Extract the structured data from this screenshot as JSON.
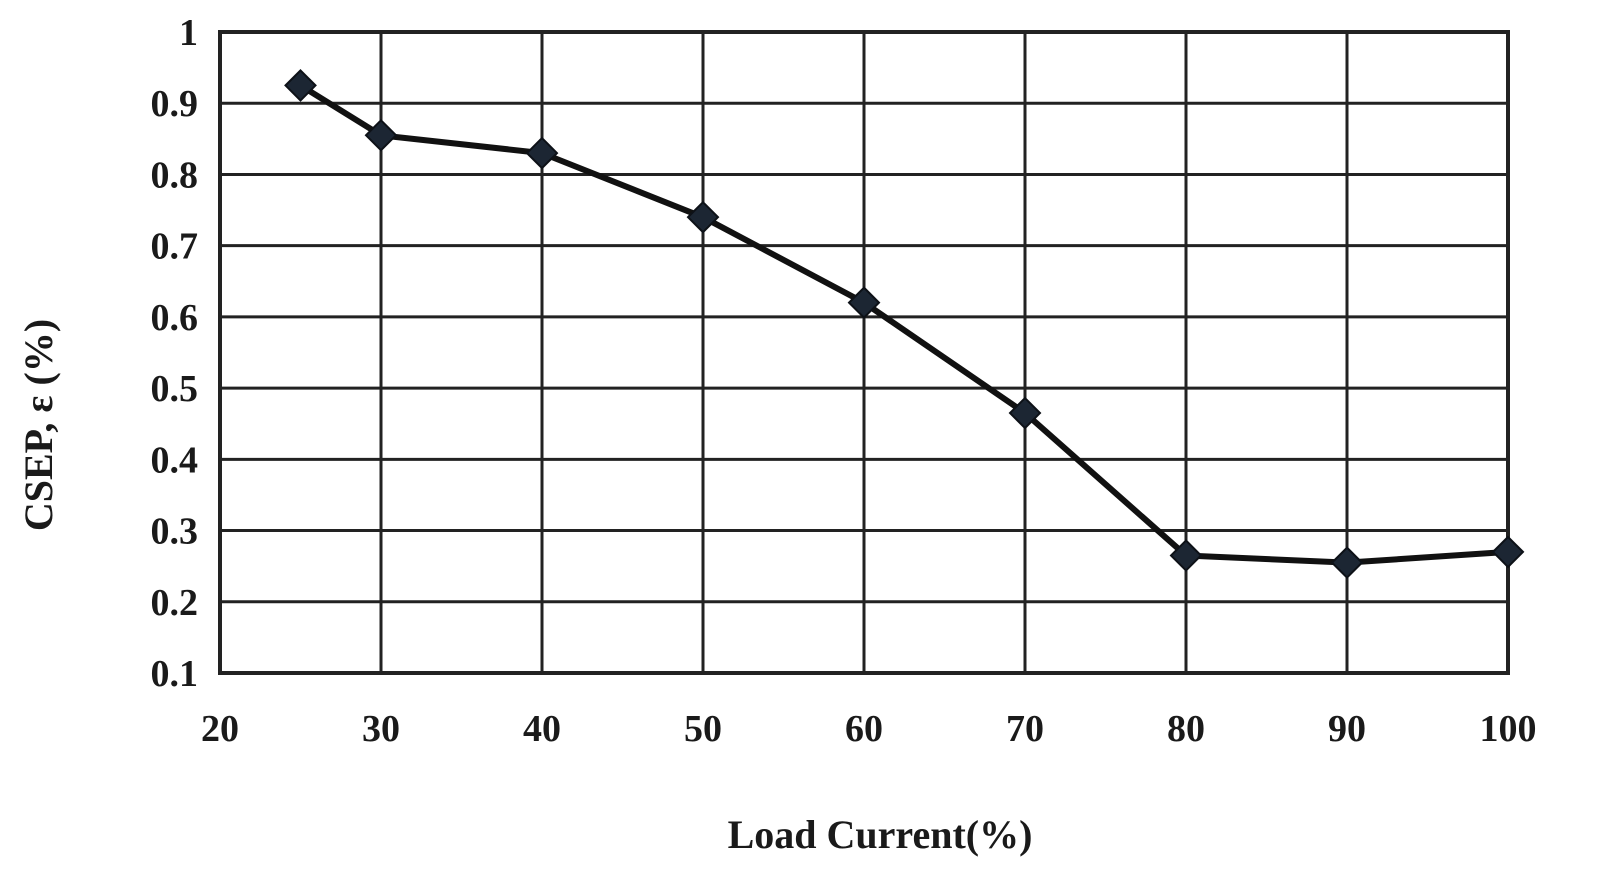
{
  "chart_data": {
    "type": "line",
    "title": "",
    "xlabel": "Load Current(%)",
    "ylabel": "CSEP, ε (%)",
    "xlim": [
      20,
      100
    ],
    "ylim": [
      0.1,
      1
    ],
    "x_ticks": [
      20,
      30,
      40,
      50,
      60,
      70,
      80,
      90,
      100
    ],
    "y_ticks": [
      0.1,
      0.2,
      0.3,
      0.4,
      0.5,
      0.6,
      0.7,
      0.8,
      0.9,
      1
    ],
    "x_tick_labels": [
      "20",
      "30",
      "40",
      "50",
      "60",
      "70",
      "80",
      "90",
      "100"
    ],
    "y_tick_labels": [
      "0.1",
      "0.2",
      "0.3",
      "0.4",
      "0.5",
      "0.6",
      "0.7",
      "0.8",
      "0.9",
      "1"
    ],
    "grid": true,
    "legend": "none",
    "marker": "diamond",
    "series": [
      {
        "x": [
          25,
          30,
          40,
          50,
          60,
          70,
          80,
          90,
          100
        ],
        "values": [
          0.925,
          0.855,
          0.83,
          0.74,
          0.62,
          0.465,
          0.265,
          0.255,
          0.27
        ],
        "color": "#111111",
        "marker_color": "#1c2633"
      }
    ]
  }
}
